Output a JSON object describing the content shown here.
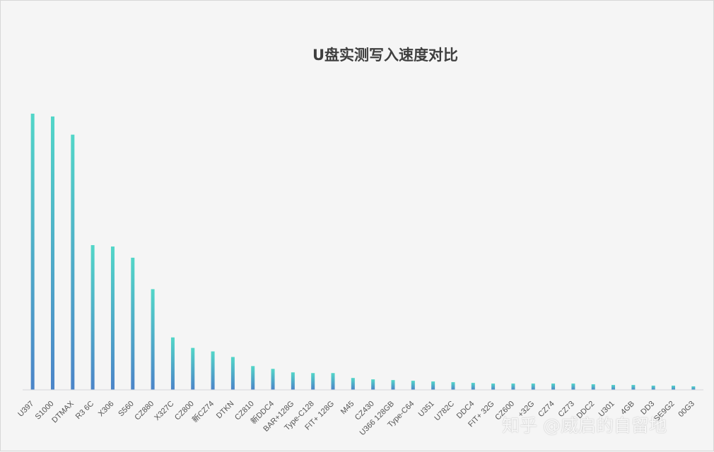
{
  "chart_data": {
    "type": "bar",
    "title": "U盘实测写入速度对比",
    "categories": [
      "U397",
      "S1000",
      "DTMAX",
      "R3 6C",
      "X306",
      "S560",
      "CZ880",
      "X327C",
      "CZ800",
      "新CZ74",
      "DTKN",
      "CZ810",
      "新DDC4",
      "BAR+128G",
      "Type-C128",
      "FIT+ 128G",
      "M45",
      "CZ430",
      "U366 128GB",
      "Type-C64",
      "U351",
      "U782C",
      "DDC4",
      "FIT+ 32G",
      "CZ600",
      "+32G",
      "CZ74",
      "CZ73",
      "DDC2",
      "U301",
      "4GB",
      "DD3",
      "SE9G2",
      "00G3"
    ],
    "values": [
      395,
      391,
      365,
      207,
      205,
      189,
      144,
      75,
      60,
      55,
      47,
      34,
      30,
      25,
      24,
      24,
      17,
      15,
      14,
      13,
      12,
      11,
      10,
      9,
      9,
      9,
      9,
      9,
      8,
      7,
      7,
      6,
      6,
      5
    ],
    "ylim": [
      0,
      400
    ],
    "grid": false,
    "legend": "none",
    "colors": {
      "bar_top": "#52d6c8",
      "bar_bottom": "#4b84c8",
      "axis": "#d5d8db",
      "background": "#f5f5f5"
    }
  },
  "watermark": {
    "text": "知乎 @威启的自留地"
  }
}
